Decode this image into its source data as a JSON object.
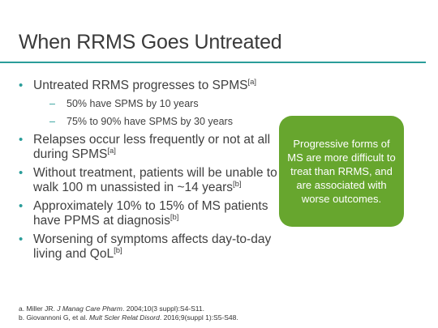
{
  "slide": {
    "title": "When RRMS Goes Untreated"
  },
  "bullets": [
    {
      "text": "Untreated RRMS progresses to SPMS",
      "sup": "[a]"
    },
    {
      "text": "Relapses occur less frequently or not at all during SPMS",
      "sup": "[a]"
    },
    {
      "text": "Without treatment, patients will be unable to walk 100 m unassisted in ~14 years",
      "sup": "[b]"
    },
    {
      "text": "Approximately 10% to 15% of MS patients have PPMS at diagnosis",
      "sup": "[b]"
    },
    {
      "text": "Worsening of symptoms affects day-to-day living and QoL",
      "sup": "[b]"
    }
  ],
  "sub_bullets": [
    "50% have SPMS by 10 years",
    "75% to 90% have SPMS by 30 years"
  ],
  "callout": {
    "text": "Progressive forms of MS are more difficult to treat than RRMS, and are associated with worse outcomes."
  },
  "references": [
    {
      "pre": "a. Miller JR. ",
      "journal": "J Manag Care Pharm",
      "post": ". 2004;10(3 suppl):S4-S11."
    },
    {
      "pre": "b. Giovannoni G, et al. ",
      "journal": "Mult Scler Relat Disord",
      "post": ". 2016;9(suppl 1):S5-S48."
    }
  ],
  "colors": {
    "accent": "#2a9d9a",
    "callout_bg": "#67a62e",
    "text": "#404040"
  }
}
